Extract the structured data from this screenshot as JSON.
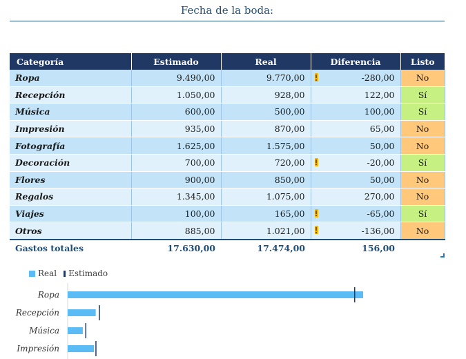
{
  "title": "Fecha de la boda:",
  "headers": {
    "category": "Categoría",
    "estimated": "Estimado",
    "real": "Real",
    "difference": "Diferencia",
    "done": "Listo"
  },
  "rows": [
    {
      "category": "Ropa",
      "estimated": "9.490,00",
      "real": "9.770,00",
      "difference": "-280,00",
      "warning": true,
      "done": "No"
    },
    {
      "category": "Recepción",
      "estimated": "1.050,00",
      "real": "928,00",
      "difference": "122,00",
      "warning": false,
      "done": "Sí"
    },
    {
      "category": "Música",
      "estimated": "600,00",
      "real": "500,00",
      "difference": "100,00",
      "warning": false,
      "done": "Sí"
    },
    {
      "category": "Impresión",
      "estimated": "935,00",
      "real": "870,00",
      "difference": "65,00",
      "warning": false,
      "done": "No"
    },
    {
      "category": "Fotografía",
      "estimated": "1.625,00",
      "real": "1.575,00",
      "difference": "50,00",
      "warning": false,
      "done": "No"
    },
    {
      "category": "Decoración",
      "estimated": "700,00",
      "real": "720,00",
      "difference": "-20,00",
      "warning": true,
      "done": "Sí"
    },
    {
      "category": "Flores",
      "estimated": "900,00",
      "real": "850,00",
      "difference": "50,00",
      "warning": false,
      "done": "No"
    },
    {
      "category": "Regalos",
      "estimated": "1.345,00",
      "real": "1.075,00",
      "difference": "270,00",
      "warning": false,
      "done": "No"
    },
    {
      "category": "Viajes",
      "estimated": "100,00",
      "real": "165,00",
      "difference": "-65,00",
      "warning": true,
      "done": "Sí"
    },
    {
      "category": "Otros",
      "estimated": "885,00",
      "real": "1.021,00",
      "difference": "-136,00",
      "warning": true,
      "done": "No"
    }
  ],
  "totals": {
    "label": "Gastos totales",
    "estimated": "17.630,00",
    "real": "17.474,00",
    "difference": "156,00"
  },
  "colors": {
    "header": "#1f3864",
    "real_bar": "#5bbcf5",
    "estimated_marker": "#1f3864",
    "status_no": "#ffc87a",
    "status_si": "#c6f081"
  },
  "chart_data": {
    "type": "bar",
    "orientation": "horizontal",
    "legend": [
      "Real",
      "Estimado"
    ],
    "legend_position": "top-left",
    "categories": [
      "Ropa",
      "Recepción",
      "Música",
      "Impresión"
    ],
    "series": [
      {
        "name": "Real",
        "values": [
          9770,
          928,
          500,
          870
        ]
      },
      {
        "name": "Estimado",
        "values": [
          9490,
          1050,
          600,
          935
        ]
      }
    ],
    "xlim": [
      0,
      10500
    ]
  }
}
